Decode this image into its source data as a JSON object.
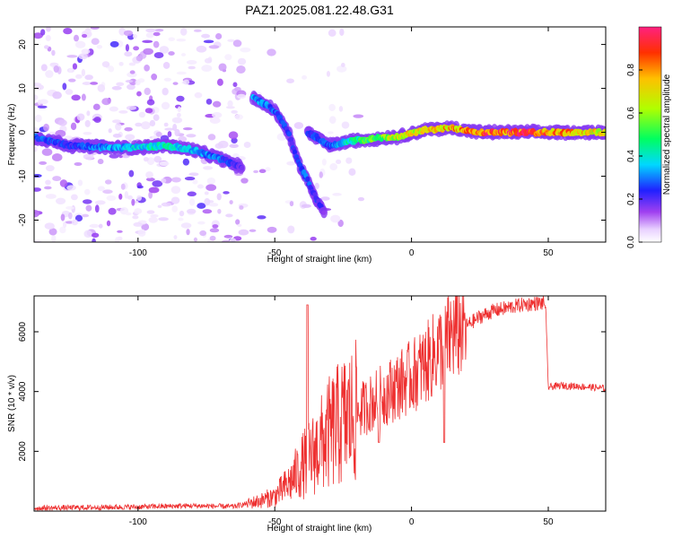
{
  "title": "PAZ1.2025.081.22.48.G31",
  "chart_data": [
    {
      "type": "heatmap",
      "xlabel": "Height of straight line (km)",
      "ylabel": "Frequency (Hz)",
      "xlim": [
        -138,
        71
      ],
      "ylim": [
        -25,
        24
      ],
      "xticks": [
        -100,
        -50,
        0,
        50
      ],
      "yticks": [
        -20,
        -10,
        0,
        10,
        20
      ],
      "colorbar": {
        "label": "Normalized spectral amplitude",
        "range": [
          0,
          1
        ],
        "ticks": [
          0.0,
          0.2,
          0.4,
          0.6,
          0.8
        ],
        "tick_labels": [
          "0.0",
          "0.2",
          "0.4",
          "0.6",
          "0.8"
        ]
      },
      "ridges": [
        {
          "x": [
            -138,
            -125,
            -110,
            -100,
            -90,
            -80,
            -70,
            -62
          ],
          "y": [
            -1,
            -3,
            -3.5,
            -3.5,
            -3,
            -4,
            -6,
            -8
          ],
          "amplitude": [
            0.3,
            0.25,
            0.35,
            0.4,
            0.45,
            0.35,
            0.3,
            0.2
          ]
        },
        {
          "x": [
            -58,
            -50,
            -45,
            -42,
            -38,
            -35,
            -32
          ],
          "y": [
            8,
            5,
            0,
            -6,
            -11,
            -15,
            -18
          ],
          "amplitude": [
            0.35,
            0.3,
            0.25,
            0.25,
            0.3,
            0.25,
            0.2
          ]
        },
        {
          "x": [
            -38,
            -30,
            -22,
            -15,
            -5,
            5,
            15,
            25,
            40,
            55,
            71
          ],
          "y": [
            0,
            -3,
            -2,
            -1.5,
            -1,
            0.5,
            1,
            0,
            0,
            0,
            0
          ],
          "amplitude": [
            0.25,
            0.3,
            0.45,
            0.55,
            0.7,
            0.75,
            0.8,
            0.9,
            0.95,
            0.85,
            0.7
          ]
        }
      ]
    },
    {
      "type": "line",
      "xlabel": "Height of straight line (km)",
      "ylabel": "SNR (10 * v/v)",
      "xlim": [
        -138,
        71
      ],
      "ylim": [
        0,
        7200
      ],
      "xticks": [
        -100,
        -50,
        0,
        50
      ],
      "yticks": [
        2000,
        4000,
        6000
      ],
      "color": "#ee3030",
      "envelope": {
        "x": [
          -138,
          -120,
          -100,
          -80,
          -65,
          -60,
          -55,
          -50,
          -45,
          -40,
          -35,
          -30,
          -25,
          -20,
          -15,
          -10,
          -5,
          0,
          5,
          10,
          15,
          20,
          25,
          30,
          35,
          40,
          45,
          49,
          50,
          55,
          60,
          65,
          71
        ],
        "y": [
          100,
          120,
          140,
          180,
          150,
          250,
          350,
          500,
          900,
          1500,
          2000,
          2600,
          3000,
          3300,
          3600,
          3900,
          4200,
          4500,
          4900,
          5400,
          5900,
          6200,
          6500,
          6700,
          6800,
          6900,
          6950,
          6950,
          4150,
          4200,
          4180,
          4150,
          4100
        ]
      },
      "spikes": [
        {
          "x": -38,
          "y": 6900
        },
        {
          "x": -12,
          "y": 2300
        },
        {
          "x": 12,
          "y": 2300
        }
      ]
    }
  ]
}
